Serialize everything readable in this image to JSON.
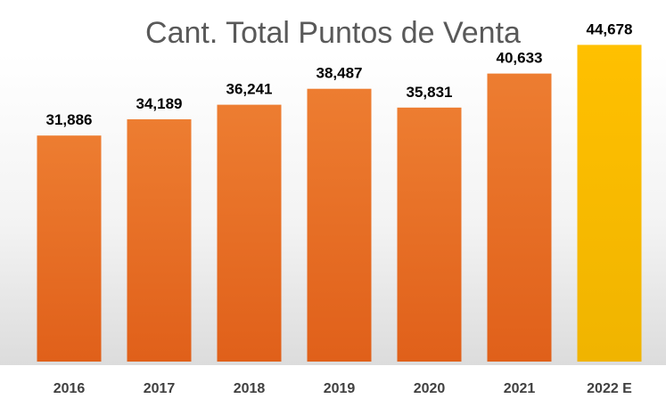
{
  "chart_data": {
    "type": "bar",
    "title": "Cant. Total Puntos de Venta",
    "categories": [
      "2016",
      "2017",
      "2018",
      "2019",
      "2020",
      "2021",
      "2022 E"
    ],
    "values": [
      31886,
      34189,
      36241,
      38487,
      35831,
      40633,
      44678
    ],
    "value_labels": [
      "31,886",
      "34,189",
      "36,241",
      "38,487",
      "35,831",
      "40,633",
      "44,678"
    ],
    "xlabel": "",
    "ylabel": "",
    "ylim": [
      0,
      48000
    ],
    "grid": false,
    "legend": "none",
    "colors": {
      "bar": "#ED7D31",
      "bar_dark": "#E0601A",
      "highlight": "#FFC000",
      "highlight_dark": "#F0B400"
    },
    "highlight_index": 6
  }
}
